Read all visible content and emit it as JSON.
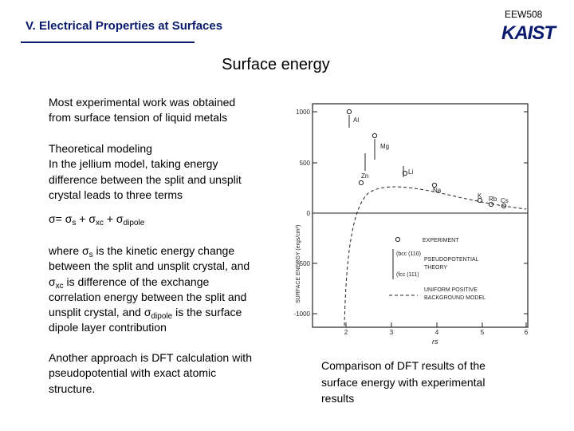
{
  "header": {
    "title": "V. Electrical Properties at Surfaces",
    "course_code": "EEW508",
    "logo_text": "KAIST",
    "colors": {
      "title": "#0a1a6e",
      "logo": "#0a1a6e"
    }
  },
  "slide": {
    "title": "Surface energy"
  },
  "body": {
    "p1_line1": "Most experimental work was obtained",
    "p1_line2": "from surface tension of liquid metals",
    "p2_line1": "Theoretical modeling",
    "p2_line2": "In the jellium model, taking energy",
    "p2_line3": "difference between the split and unsplit",
    "p2_line4": "crystal leads to three terms",
    "eq": {
      "lhs": "σ= σ",
      "s": "s",
      "plus1": " + σ",
      "xc": "xc",
      "plus2": " + σ",
      "dipole": "dipole"
    },
    "p3": {
      "a": "where σ",
      "s": "s",
      "b": " is the kinetic energy change",
      "line2": "between the split and unsplit crystal, and",
      "c": "σ",
      "xc": "xc",
      "d": " is difference of the exchange",
      "line4": "correlation energy between the split and",
      "e": "unsplit crystal, and σ",
      "dipole": "dipole",
      "f": " is the surface",
      "line6": "dipole layer contribution"
    },
    "p4_line1": "Another approach is DFT calculation with",
    "p4_line2": "pseudopotential with exact atomic",
    "p4_line3": "structure."
  },
  "caption": {
    "line1": "Comparison of DFT results of the",
    "line2": "surface energy with experimental",
    "line3": "results"
  },
  "figure": {
    "ylabel": "SURFACE ENERGY (ergs/cm²)",
    "xlabel": "rs",
    "y_ticks": [
      "1000",
      "500",
      "0",
      "-500",
      "-1000"
    ],
    "x_ticks": [
      "2",
      "3",
      "4",
      "5",
      "6"
    ],
    "element_labels": [
      "Al",
      "Mg",
      "Zn",
      "Li",
      "Na",
      "K",
      "Rb",
      "Cs"
    ],
    "legend": {
      "experiment": "EXPERIMENT",
      "bcc": "(bcc (110)",
      "fcc": "(fcc (111)",
      "pseudo1": "PSEUDOPOTENTIAL",
      "pseudo2": "THEORY",
      "uniform1": "UNIFORM POSITIVE",
      "uniform2": "BACKGROUND MODEL"
    }
  }
}
